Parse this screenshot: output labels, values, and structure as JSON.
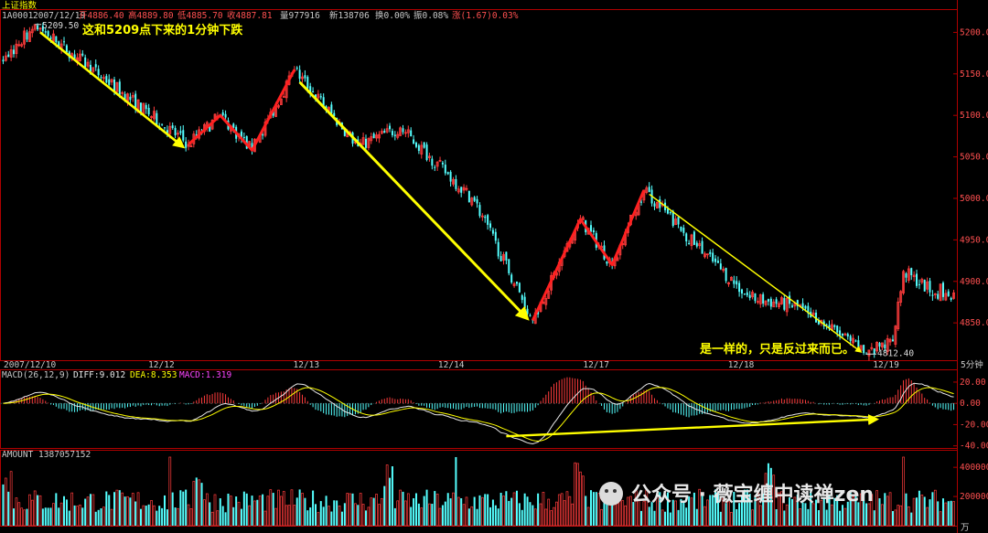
{
  "header": {
    "index_name": "上证指数",
    "code": "1A0001",
    "date": "2007/12/19",
    "open": "开4886.40",
    "high": "高4889.80",
    "low": "低4885.70",
    "close": "收4887.81",
    "volume": "量977916",
    "new": "新138706",
    "turnover": "换0.00%",
    "amplitude": "振0.08%",
    "change": "涨(1.67)0.03%"
  },
  "price_panel": {
    "ticks": [
      "5200.00",
      "5150.00",
      "5100.00",
      "5050.00",
      "5000.00",
      "4950.00",
      "4900.00",
      "4850.00"
    ],
    "high_label": "5209.50",
    "low_label": "4812.40",
    "annotation_top": "这和5209点下来的1分钟下跌",
    "annotation_bottom": "是一样的，只是反过来而已。"
  },
  "date_axis": {
    "labels": [
      "2007/12/10",
      "12/12",
      "12/13",
      "12/14",
      "12/17",
      "12/18",
      "12/19"
    ],
    "period": "5分钟"
  },
  "macd_panel": {
    "params": "MACD(26,12,9)",
    "diff": "DIFF:9.012",
    "dea": "DEA:8.353",
    "macd": "MACD:1.319",
    "ticks": [
      "20.00",
      "0.00",
      "-20.00",
      "-40.00"
    ]
  },
  "amount_panel": {
    "label": "AMOUNT 1387057152",
    "ticks": [
      "400000",
      "200000"
    ],
    "unit": "万"
  },
  "watermark": "公众号 · 薇宝缠中读禅zen",
  "colors": {
    "up": "#ff3c3c",
    "down": "#54ffff",
    "annotation": "#ffff00",
    "axis": "#b00000",
    "ticks": "#ff5050"
  },
  "chart_data": {
    "type": "candlestick",
    "title": "上证指数",
    "period": "5分钟",
    "price_range": [
      4812.4,
      5209.5
    ],
    "wave_points": [
      {
        "bar": 0,
        "price": 5165
      },
      {
        "bar": 12,
        "price": 5209.5
      },
      {
        "bar": 70,
        "price": 5065
      },
      {
        "bar": 82,
        "price": 5100
      },
      {
        "bar": 94,
        "price": 5058
      },
      {
        "bar": 110,
        "price": 5155
      },
      {
        "bar": 134,
        "price": 5063
      },
      {
        "bar": 150,
        "price": 5085
      },
      {
        "bar": 178,
        "price": 4997
      },
      {
        "bar": 200,
        "price": 4853
      },
      {
        "bar": 218,
        "price": 4975
      },
      {
        "bar": 230,
        "price": 4920
      },
      {
        "bar": 242,
        "price": 5010
      },
      {
        "bar": 262,
        "price": 4942
      },
      {
        "bar": 282,
        "price": 4880
      },
      {
        "bar": 302,
        "price": 4868
      },
      {
        "bar": 326,
        "price": 4812.4
      },
      {
        "bar": 336,
        "price": 4828
      },
      {
        "bar": 340,
        "price": 4912
      },
      {
        "bar": 352,
        "price": 4885
      }
    ],
    "annotation_strokes": {
      "red_zigzag_1": [
        [
          70,
          5065
        ],
        [
          82,
          5100
        ],
        [
          94,
          5058
        ],
        [
          110,
          5155
        ]
      ],
      "red_zigzag_2": [
        [
          200,
          4853
        ],
        [
          218,
          4975
        ],
        [
          230,
          4920
        ],
        [
          242,
          5010
        ]
      ],
      "yellow_arrows": [
        {
          "from": [
            14,
            5200
          ],
          "to": [
            68,
            5062
          ]
        },
        {
          "from": [
            112,
            5140
          ],
          "to": [
            198,
            4855
          ]
        },
        {
          "from": [
            244,
            5005
          ],
          "to": [
            324,
            4815
          ]
        }
      ],
      "macd_divergence_arrow": {
        "from": [
          190,
          -31
        ],
        "to": [
          330,
          -15
        ]
      }
    },
    "macd_range": [
      -40,
      30
    ],
    "amount_max": 400000
  }
}
